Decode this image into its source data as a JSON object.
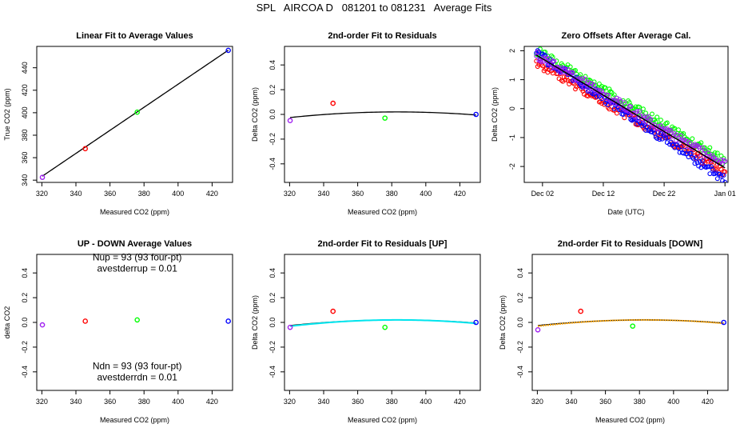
{
  "title": "SPL   AIRCOA D   081201 to 081231   Average Fits",
  "colors": {
    "violet": "#a020f0",
    "red": "#ff0000",
    "green": "#00ff00",
    "blue": "#0000ff",
    "black": "#000000",
    "cyan": "#00e5ee",
    "orange": "#ffa500"
  },
  "chart_data": [
    {
      "id": "linear",
      "type": "scatter",
      "title": "Linear Fit to Average Values",
      "xlabel": "Measured CO2 (ppm)",
      "ylabel": "True CO2 (ppm)",
      "xlim": [
        317,
        432
      ],
      "ylim": [
        338,
        459
      ],
      "xticks": [
        320,
        340,
        360,
        380,
        400,
        420
      ],
      "yticks": [
        340,
        360,
        380,
        400,
        420,
        440
      ],
      "points": [
        {
          "x": 320.3,
          "y": 342.5,
          "color": "violet"
        },
        {
          "x": 345.5,
          "y": 368.0,
          "color": "red"
        },
        {
          "x": 376.0,
          "y": 400.5,
          "color": "green"
        },
        {
          "x": 429.5,
          "y": 455.5,
          "color": "blue"
        }
      ],
      "curves": [
        {
          "kind": "poly",
          "coef": [
            14.95,
            1.026
          ],
          "from": 320.3,
          "to": 429.5,
          "color": "black"
        }
      ]
    },
    {
      "id": "resid",
      "type": "scatter",
      "title": "2nd-order Fit to Residuals",
      "xlabel": "Measured CO2 (ppm)",
      "ylabel": "Delta CO2 (ppm)",
      "xlim": [
        317,
        432
      ],
      "ylim": [
        -0.55,
        0.55
      ],
      "xticks": [
        320,
        340,
        360,
        380,
        400,
        420
      ],
      "yticks": [
        -0.4,
        -0.2,
        0.0,
        0.2,
        0.4
      ],
      "points": [
        {
          "x": 320.3,
          "y": -0.05,
          "color": "violet"
        },
        {
          "x": 345.5,
          "y": 0.09,
          "color": "red"
        },
        {
          "x": 376.0,
          "y": -0.03,
          "color": "green"
        },
        {
          "x": 429.5,
          "y": 0.0,
          "color": "blue"
        }
      ],
      "curves": [
        {
          "kind": "quad",
          "vertex": [
            383,
            0.02
          ],
          "a": -1.15e-05,
          "from": 320.3,
          "to": 429.5,
          "color": "black"
        }
      ]
    },
    {
      "id": "zero",
      "type": "scatter",
      "title": "Zero Offsets After Average Cal.",
      "xlabel": "Date (UTC)",
      "ylabel": "Delta CO2 (ppm)",
      "xlim": [
        "2008-11-29",
        "2009-01-01T12:00"
      ],
      "ylim": [
        -2.55,
        2.15
      ],
      "xticks": [
        "2008-12-02",
        "2008-12-12",
        "2008-12-22",
        "2009-01-01"
      ],
      "xticklabels": [
        "Dec 02",
        "Dec 12",
        "Dec 22",
        "Jan 01"
      ],
      "yticks": [
        -2,
        -1,
        0,
        1,
        2
      ],
      "series": [
        {
          "color": "green",
          "start": [
            "2008-12-01",
            2.0
          ],
          "end": [
            "2009-01-01",
            -1.8
          ],
          "spread": 0.15
        },
        {
          "color": "red",
          "start": [
            "2008-12-01",
            1.6
          ],
          "end": [
            "2009-01-01",
            -2.2
          ],
          "spread": 0.15
        },
        {
          "color": "blue",
          "start": [
            "2008-12-01",
            1.9
          ],
          "end": [
            "2009-01-01",
            -2.45
          ],
          "spread": 0.15
        },
        {
          "color": "violet",
          "start": [
            "2008-12-01",
            1.85
          ],
          "end": [
            "2009-01-01",
            -1.95
          ],
          "spread": 0.15
        }
      ],
      "lines": [
        {
          "color": "black",
          "start": [
            "2008-12-01",
            1.85
          ],
          "end": [
            "2009-01-01",
            -2.05
          ]
        }
      ]
    },
    {
      "id": "updown",
      "type": "scatter",
      "title": "UP - DOWN Average Values",
      "xlabel": "Measured CO2 (ppm)",
      "ylabel": "delta CO2",
      "xlim": [
        317,
        432
      ],
      "ylim": [
        -0.55,
        0.55
      ],
      "xticks": [
        320,
        340,
        360,
        380,
        400,
        420
      ],
      "yticks": [
        -0.4,
        -0.2,
        0.0,
        0.2,
        0.4
      ],
      "points": [
        {
          "x": 320.3,
          "y": -0.02,
          "color": "violet"
        },
        {
          "x": 345.5,
          "y": 0.01,
          "color": "red"
        },
        {
          "x": 376.0,
          "y": 0.02,
          "color": "green"
        },
        {
          "x": 429.5,
          "y": 0.01,
          "color": "blue"
        }
      ],
      "annotations": [
        {
          "text": "Nup = 93 (93 four-pt)",
          "x": 376,
          "y": 0.5
        },
        {
          "text": "avestderrup =  0.01",
          "x": 376,
          "y": 0.41
        },
        {
          "text": "Ndn = 93 (93 four-pt)",
          "x": 376,
          "y": -0.38
        },
        {
          "text": "avestderrdn =  0.01",
          "x": 376,
          "y": -0.47
        }
      ]
    },
    {
      "id": "resid-up",
      "type": "scatter",
      "title": "2nd-order Fit to Residuals [UP]",
      "xlabel": "Measured CO2 (ppm)",
      "ylabel": "Delta CO2 (ppm)",
      "xlim": [
        317,
        432
      ],
      "ylim": [
        -0.55,
        0.55
      ],
      "xticks": [
        320,
        340,
        360,
        380,
        400,
        420
      ],
      "yticks": [
        -0.4,
        -0.2,
        0.0,
        0.2,
        0.4
      ],
      "points": [
        {
          "x": 320.3,
          "y": -0.04,
          "color": "violet"
        },
        {
          "x": 345.5,
          "y": 0.09,
          "color": "red"
        },
        {
          "x": 376.0,
          "y": -0.04,
          "color": "green"
        },
        {
          "x": 429.5,
          "y": 0.0,
          "color": "blue"
        }
      ],
      "curves": [
        {
          "kind": "quad",
          "vertex": [
            383,
            0.02
          ],
          "a": -1.15e-05,
          "from": 320.3,
          "to": 429.5,
          "color": "black"
        },
        {
          "kind": "quad",
          "vertex": [
            383,
            0.02
          ],
          "a": -1.3e-05,
          "from": 320.3,
          "to": 429.5,
          "color": "cyan",
          "width": 2
        }
      ]
    },
    {
      "id": "resid-down",
      "type": "scatter",
      "title": "2nd-order Fit to Residuals [DOWN]",
      "xlabel": "Measured CO2 (ppm)",
      "ylabel": "Delta CO2 (ppm)",
      "xlim": [
        317,
        432
      ],
      "ylim": [
        -0.55,
        0.55
      ],
      "xticks": [
        320,
        340,
        360,
        380,
        400,
        420
      ],
      "yticks": [
        -0.4,
        -0.2,
        0.0,
        0.2,
        0.4
      ],
      "points": [
        {
          "x": 320.3,
          "y": -0.06,
          "color": "violet"
        },
        {
          "x": 345.5,
          "y": 0.09,
          "color": "red"
        },
        {
          "x": 376.0,
          "y": -0.03,
          "color": "green"
        },
        {
          "x": 429.5,
          "y": 0.0,
          "color": "blue"
        }
      ],
      "curves": [
        {
          "kind": "quad",
          "vertex": [
            383,
            0.02
          ],
          "a": -1.15e-05,
          "from": 320.3,
          "to": 429.5,
          "color": "black"
        },
        {
          "kind": "quad",
          "vertex": [
            383,
            0.02
          ],
          "a": -1.3e-05,
          "from": 320.3,
          "to": 429.5,
          "color": "orange",
          "width": 2,
          "dash": "2,1"
        }
      ]
    }
  ]
}
